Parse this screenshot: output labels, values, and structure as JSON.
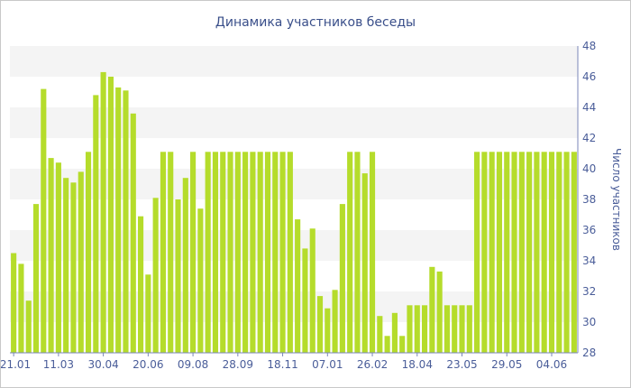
{
  "chart_data": {
    "type": "bar",
    "title": "Динамика участников беседы",
    "xlabel": "",
    "ylabel": "Число участников",
    "ylim": [
      28,
      48
    ],
    "y_ticks": [
      28,
      30,
      32,
      34,
      36,
      38,
      40,
      42,
      44,
      46,
      48
    ],
    "y_axis_position": "right",
    "grid": "alternating horizontal bands",
    "bar_color": "#b5dc2b",
    "x_tick_labels": [
      {
        "label": "21.01",
        "index": 0
      },
      {
        "label": "11.03",
        "index": 6
      },
      {
        "label": "30.04",
        "index": 12
      },
      {
        "label": "20.06",
        "index": 18
      },
      {
        "label": "09.08",
        "index": 24
      },
      {
        "label": "28.09",
        "index": 30
      },
      {
        "label": "18.11",
        "index": 36
      },
      {
        "label": "07.01",
        "index": 42
      },
      {
        "label": "26.02",
        "index": 48
      },
      {
        "label": "18.04",
        "index": 54
      },
      {
        "label": "23.05",
        "index": 60
      },
      {
        "label": "29.05",
        "index": 66
      },
      {
        "label": "04.06",
        "index": 72
      }
    ],
    "values": [
      34.5,
      33.8,
      31.4,
      37.7,
      45.2,
      40.7,
      40.4,
      39.4,
      39.1,
      39.8,
      41.1,
      44.8,
      46.3,
      46.0,
      45.3,
      45.1,
      43.6,
      36.9,
      33.1,
      38.1,
      41.1,
      41.1,
      38.0,
      39.4,
      41.1,
      37.4,
      41.1,
      41.1,
      41.1,
      41.1,
      41.1,
      41.1,
      41.1,
      41.1,
      41.1,
      41.1,
      41.1,
      41.1,
      36.7,
      34.8,
      36.1,
      31.7,
      30.9,
      32.1,
      37.7,
      41.1,
      41.1,
      39.7,
      41.1,
      30.4,
      29.1,
      30.6,
      29.1,
      31.1,
      31.1,
      31.1,
      33.6,
      33.3,
      31.1,
      31.1,
      31.1,
      31.1,
      41.1,
      41.1,
      41.1,
      41.1,
      41.1,
      41.1,
      41.1,
      41.1,
      41.1,
      41.1,
      41.1,
      41.1,
      41.1,
      41.1
    ]
  }
}
